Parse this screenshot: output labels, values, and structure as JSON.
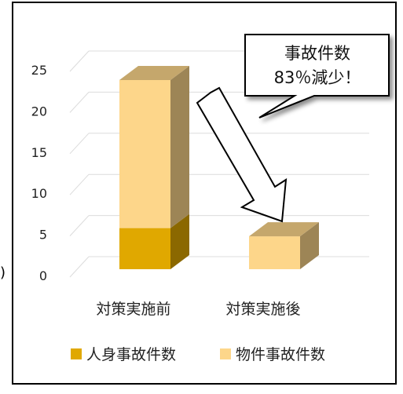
{
  "chart_data": {
    "type": "bar",
    "stacked": true,
    "three_d": true,
    "categories": [
      "対策実施前",
      "対策実施後"
    ],
    "series": [
      {
        "name": "人身事故件数",
        "values": [
          5,
          0
        ],
        "color": "#E0A800"
      },
      {
        "name": "物件事故件数",
        "values": [
          18,
          4
        ],
        "color": "#FDD68A"
      }
    ],
    "y_ticks": [
      "0",
      "5",
      "10",
      "15",
      "20",
      "25"
    ],
    "ylim": [
      0,
      25
    ],
    "grid": true,
    "legend_position": "bottom",
    "annotation": {
      "line1": "事故件数",
      "line2": "83％減少！"
    }
  },
  "stray_mark": ")"
}
